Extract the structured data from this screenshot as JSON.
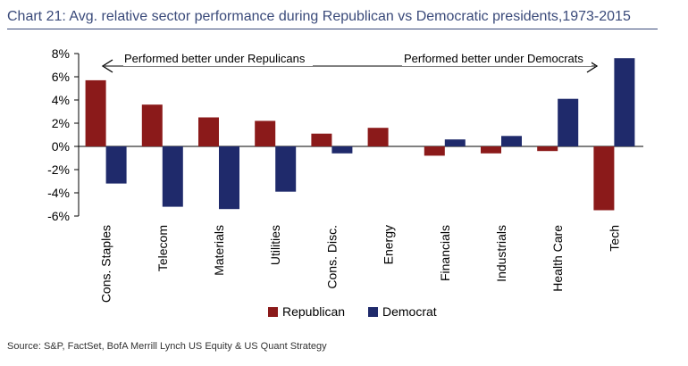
{
  "title": "Chart 21: Avg. relative sector performance during Republican vs Democratic presidents,1973-2015",
  "source": "Source: S&P, FactSet, BofA Merrill Lynch US Equity & US Quant Strategy",
  "annotations": {
    "left": "Performed better under Repulicans",
    "right": "Performed better under Democrats"
  },
  "colors": {
    "republican": "#8b1a1a",
    "democrat": "#1f2a6b"
  },
  "chart_data": {
    "type": "bar",
    "categories": [
      "Cons. Staples",
      "Telecom",
      "Materials",
      "Utilities",
      "Cons. Disc.",
      "Energy",
      "Financials",
      "Industrials",
      "Health Care",
      "Tech"
    ],
    "series": [
      {
        "name": "Republican",
        "values": [
          5.7,
          3.6,
          2.5,
          2.2,
          1.1,
          1.6,
          -0.8,
          -0.6,
          -0.4,
          -5.5
        ]
      },
      {
        "name": "Democrat",
        "values": [
          -3.2,
          -5.2,
          -5.4,
          -3.9,
          -0.6,
          0.0,
          0.6,
          0.9,
          4.1,
          7.6
        ]
      }
    ],
    "ylim": [
      -6,
      8
    ],
    "yticks": [
      -6,
      -4,
      -2,
      0,
      2,
      4,
      6,
      8
    ],
    "ytick_labels": [
      "-6%",
      "-4%",
      "-2%",
      "0%",
      "2%",
      "4%",
      "6%",
      "8%"
    ],
    "legend_position": "bottom-center",
    "grid": false
  }
}
